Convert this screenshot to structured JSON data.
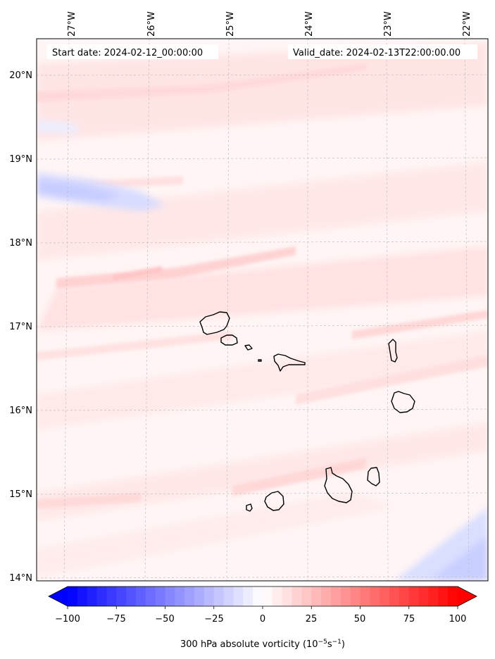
{
  "header": {
    "start_date": "Start date: 2024-02-12_00:00:00",
    "valid_date": "Valid_date: 2024-02-13T22:00:00.00"
  },
  "map": {
    "lon_labels": [
      "27°W",
      "26°W",
      "25°W",
      "24°W",
      "23°W",
      "22°W"
    ],
    "lat_labels": [
      "20°N",
      "19°N",
      "18°N",
      "17°N",
      "16°N",
      "15°N",
      "14°N"
    ],
    "lon_ticks": [
      -27,
      -26,
      -25,
      -24,
      -23,
      -22
    ],
    "lat_ticks": [
      20,
      19,
      18,
      17,
      16,
      15,
      14
    ],
    "extent": {
      "lon_min": -27.34,
      "lon_max": -21.92,
      "lat_min": 13.95,
      "lat_max": 20.42
    },
    "islands": [
      "Santo Antão",
      "São Vicente",
      "Santa Luzia",
      "São Nicolau",
      "Sal",
      "Boa Vista",
      "Maio",
      "Santiago",
      "Fogo",
      "Brava"
    ]
  },
  "colorbar": {
    "min": -100,
    "max": 100,
    "ticks": [
      "−100",
      "−75",
      "−50",
      "−25",
      "0",
      "25",
      "50",
      "75",
      "100"
    ],
    "tick_values": [
      -100,
      -75,
      -50,
      -25,
      0,
      25,
      50,
      75,
      100
    ],
    "label_main": "300 hPa absolute vorticity (10",
    "label_sup1": "−5",
    "label_mid": "s",
    "label_sup2": "−1",
    "label_end": ")",
    "neg_color": "#0000ff",
    "pos_color": "#ff0000"
  }
}
